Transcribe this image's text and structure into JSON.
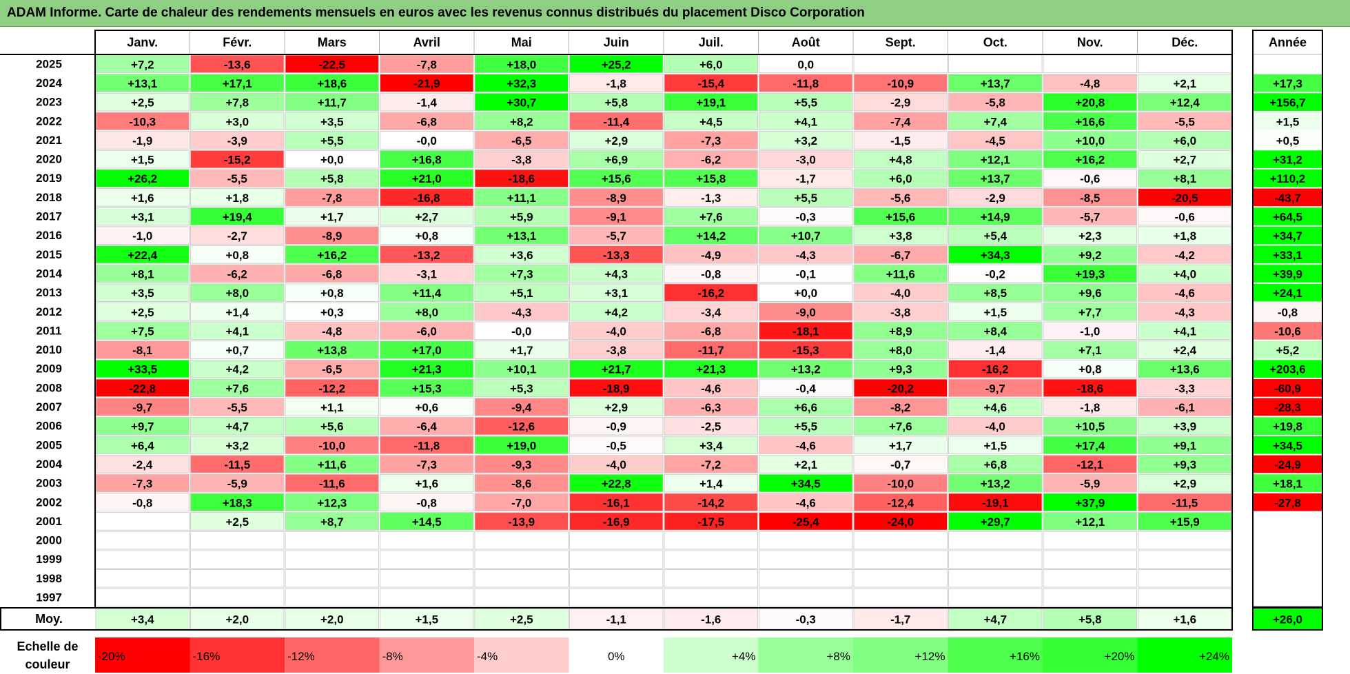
{
  "title": "ADAM Informe. Carte de chaleur des rendements mensuels en euros avec les revenus connus distribués du placement Disco Corporation",
  "chart_data": {
    "type": "heatmap",
    "months": [
      "Janv.",
      "Févr.",
      "Mars",
      "Avril",
      "Mai",
      "Juin",
      "Juil.",
      "Août",
      "Sept.",
      "Oct.",
      "Nov.",
      "Déc."
    ],
    "year_header": "Année",
    "avg_label": "Moy.",
    "rows": [
      {
        "year": "2025",
        "values": [
          "+7,2",
          "-13,6",
          "-22,5",
          "-7,8",
          "+18,0",
          "+25,2",
          "+6,0",
          "0,0",
          "",
          "",
          "",
          ""
        ],
        "annual": ""
      },
      {
        "year": "2024",
        "values": [
          "+13,1",
          "+17,1",
          "+18,6",
          "-21,9",
          "+32,3",
          "-1,8",
          "-15,4",
          "-11,8",
          "-10,9",
          "+13,7",
          "-4,8",
          "+2,1"
        ],
        "annual": "+17,3"
      },
      {
        "year": "2023",
        "values": [
          "+2,5",
          "+7,8",
          "+11,7",
          "-1,4",
          "+30,7",
          "+5,8",
          "+19,1",
          "+5,5",
          "-2,9",
          "-5,8",
          "+20,8",
          "+12,4"
        ],
        "annual": "+156,7"
      },
      {
        "year": "2022",
        "values": [
          "-10,3",
          "+3,0",
          "+3,5",
          "-6,8",
          "+8,2",
          "-11,4",
          "+4,5",
          "+4,1",
          "-7,4",
          "+7,4",
          "+16,6",
          "-5,5"
        ],
        "annual": "+1,5"
      },
      {
        "year": "2021",
        "values": [
          "-1,9",
          "-3,9",
          "+5,5",
          "-0,0",
          "-6,5",
          "+2,9",
          "-7,3",
          "+3,2",
          "-1,5",
          "-4,5",
          "+10,0",
          "+6,0"
        ],
        "annual": "+0,5"
      },
      {
        "year": "2020",
        "values": [
          "+1,5",
          "-15,2",
          "+0,0",
          "+16,8",
          "-3,8",
          "+6,9",
          "-6,2",
          "-3,0",
          "+4,8",
          "+12,1",
          "+16,2",
          "+2,7"
        ],
        "annual": "+31,2"
      },
      {
        "year": "2019",
        "values": [
          "+26,2",
          "-5,5",
          "+5,8",
          "+21,0",
          "-18,6",
          "+15,6",
          "+15,8",
          "-1,7",
          "+6,0",
          "+13,7",
          "-0,6",
          "+8,1"
        ],
        "annual": "+110,2"
      },
      {
        "year": "2018",
        "values": [
          "+1,6",
          "+1,8",
          "-7,8",
          "-16,8",
          "+11,1",
          "-8,9",
          "-1,3",
          "+5,5",
          "-5,6",
          "-2,9",
          "-8,5",
          "-20,5"
        ],
        "annual": "-43,7"
      },
      {
        "year": "2017",
        "values": [
          "+3,1",
          "+19,4",
          "+1,7",
          "+2,7",
          "+5,9",
          "-9,1",
          "+7,6",
          "-0,3",
          "+15,6",
          "+14,9",
          "-5,7",
          "-0,6"
        ],
        "annual": "+64,5"
      },
      {
        "year": "2016",
        "values": [
          "-1,0",
          "-2,7",
          "-8,9",
          "+0,8",
          "+13,1",
          "-5,7",
          "+14,2",
          "+10,7",
          "+3,8",
          "+5,4",
          "+2,3",
          "+1,8"
        ],
        "annual": "+34,7"
      },
      {
        "year": "2015",
        "values": [
          "+22,4",
          "+0,8",
          "+16,2",
          "-13,2",
          "+3,6",
          "-13,3",
          "-4,9",
          "-4,3",
          "-6,7",
          "+34,3",
          "+9,2",
          "-4,2"
        ],
        "annual": "+33,1"
      },
      {
        "year": "2014",
        "values": [
          "+8,1",
          "-6,2",
          "-6,8",
          "-3,1",
          "+7,3",
          "+4,3",
          "-0,8",
          "-0,1",
          "+11,6",
          "-0,2",
          "+19,3",
          "+4,0"
        ],
        "annual": "+39,9"
      },
      {
        "year": "2013",
        "values": [
          "+3,5",
          "+8,0",
          "+0,8",
          "+11,4",
          "+5,1",
          "+3,1",
          "-16,2",
          "+0,0",
          "-4,0",
          "+8,5",
          "+9,6",
          "-4,6"
        ],
        "annual": "+24,1"
      },
      {
        "year": "2012",
        "values": [
          "+2,5",
          "+1,4",
          "+0,3",
          "+8,0",
          "-4,3",
          "+4,2",
          "-3,4",
          "-9,0",
          "-3,8",
          "+1,5",
          "+7,7",
          "-4,3"
        ],
        "annual": "-0,8"
      },
      {
        "year": "2011",
        "values": [
          "+7,5",
          "+4,1",
          "-4,8",
          "-6,0",
          "-0,0",
          "-4,0",
          "-6,8",
          "-18,1",
          "+8,9",
          "+8,4",
          "-1,0",
          "+4,1"
        ],
        "annual": "-10,6"
      },
      {
        "year": "2010",
        "values": [
          "-8,1",
          "+0,7",
          "+13,8",
          "+17,0",
          "+1,7",
          "-3,8",
          "-11,7",
          "-15,3",
          "+8,0",
          "-1,4",
          "+7,1",
          "+2,4"
        ],
        "annual": "+5,2"
      },
      {
        "year": "2009",
        "values": [
          "+33,5",
          "+4,2",
          "-6,5",
          "+21,3",
          "+10,1",
          "+21,7",
          "+21,3",
          "+13,2",
          "+9,3",
          "-16,2",
          "+0,8",
          "+13,6"
        ],
        "annual": "+203,6"
      },
      {
        "year": "2008",
        "values": [
          "-22,8",
          "+7,6",
          "-12,2",
          "+15,3",
          "+5,3",
          "-18,9",
          "-4,6",
          "-0,4",
          "-20,2",
          "-9,7",
          "-18,6",
          "-3,3"
        ],
        "annual": "-60,9"
      },
      {
        "year": "2007",
        "values": [
          "-9,7",
          "-5,5",
          "+1,1",
          "+0,6",
          "-9,4",
          "+2,9",
          "-6,3",
          "+6,6",
          "-8,2",
          "+4,6",
          "-1,8",
          "-6,1"
        ],
        "annual": "-28,3"
      },
      {
        "year": "2006",
        "values": [
          "+9,7",
          "+4,7",
          "+5,6",
          "-6,4",
          "-12,6",
          "-0,9",
          "-2,5",
          "+5,5",
          "+7,6",
          "-4,0",
          "+10,5",
          "+3,9"
        ],
        "annual": "+19,8"
      },
      {
        "year": "2005",
        "values": [
          "+6,4",
          "+3,2",
          "-10,0",
          "-11,8",
          "+19,0",
          "-0,5",
          "+3,4",
          "-4,6",
          "+1,7",
          "+1,5",
          "+17,4",
          "+9,1"
        ],
        "annual": "+34,5"
      },
      {
        "year": "2004",
        "values": [
          "-2,4",
          "-11,5",
          "+11,6",
          "-7,3",
          "-9,3",
          "-4,0",
          "-7,2",
          "+2,1",
          "-0,7",
          "+6,8",
          "-12,1",
          "+9,3"
        ],
        "annual": "-24,9"
      },
      {
        "year": "2003",
        "values": [
          "-7,3",
          "-5,9",
          "-11,6",
          "+1,6",
          "-8,6",
          "+22,8",
          "+1,4",
          "+34,5",
          "-10,0",
          "+13,2",
          "-5,9",
          "+2,9"
        ],
        "annual": "+18,1"
      },
      {
        "year": "2002",
        "values": [
          "-0,8",
          "+18,3",
          "+12,3",
          "-0,8",
          "-7,0",
          "-16,1",
          "-14,2",
          "-4,6",
          "-12,4",
          "-19,1",
          "+37,9",
          "-11,5"
        ],
        "annual": "-27,8"
      },
      {
        "year": "2001",
        "values": [
          "",
          "+2,5",
          "+8,7",
          "+14,5",
          "-13,9",
          "-16,9",
          "-17,5",
          "-25,4",
          "-24,0",
          "+29,7",
          "+12,1",
          "+15,9"
        ],
        "annual": ""
      },
      {
        "year": "2000",
        "values": [
          "",
          "",
          "",
          "",
          "",
          "",
          "",
          "",
          "",
          "",
          "",
          ""
        ],
        "annual": ""
      },
      {
        "year": "1999",
        "values": [
          "",
          "",
          "",
          "",
          "",
          "",
          "",
          "",
          "",
          "",
          "",
          ""
        ],
        "annual": ""
      },
      {
        "year": "1998",
        "values": [
          "",
          "",
          "",
          "",
          "",
          "",
          "",
          "",
          "",
          "",
          "",
          ""
        ],
        "annual": ""
      },
      {
        "year": "1997",
        "values": [
          "",
          "",
          "",
          "",
          "",
          "",
          "",
          "",
          "",
          "",
          "",
          ""
        ],
        "annual": ""
      }
    ],
    "average": {
      "values": [
        "+3,4",
        "+2,0",
        "+2,0",
        "+1,5",
        "+2,5",
        "-1,1",
        "-1,6",
        "-0,3",
        "-1,7",
        "+4,7",
        "+5,8",
        "+1,6"
      ],
      "annual": "+26,0"
    },
    "scale": {
      "label_line1": "Echelle de",
      "label_line2": "couleur",
      "steps": [
        {
          "label": "-20%",
          "value": -20,
          "color": "#ff0000"
        },
        {
          "label": "-16%",
          "value": -16,
          "color": "#ff3333"
        },
        {
          "label": "-12%",
          "value": -12,
          "color": "#ff6666"
        },
        {
          "label": "-8%",
          "value": -8,
          "color": "#ff9999"
        },
        {
          "label": "-4%",
          "value": -4,
          "color": "#ffcccc"
        },
        {
          "label": "0%",
          "value": 0,
          "color": "#ffffff"
        },
        {
          "label": "+4%",
          "value": 4,
          "color": "#ccffcc"
        },
        {
          "label": "+8%",
          "value": 8,
          "color": "#99ff99"
        },
        {
          "label": "+12%",
          "value": 12,
          "color": "#80ff80"
        },
        {
          "label": "+16%",
          "value": 16,
          "color": "#4dff4d"
        },
        {
          "label": "+20%",
          "value": 20,
          "color": "#33ff33"
        },
        {
          "label": "+24%",
          "value": 24,
          "color": "#00ff00"
        }
      ]
    }
  }
}
